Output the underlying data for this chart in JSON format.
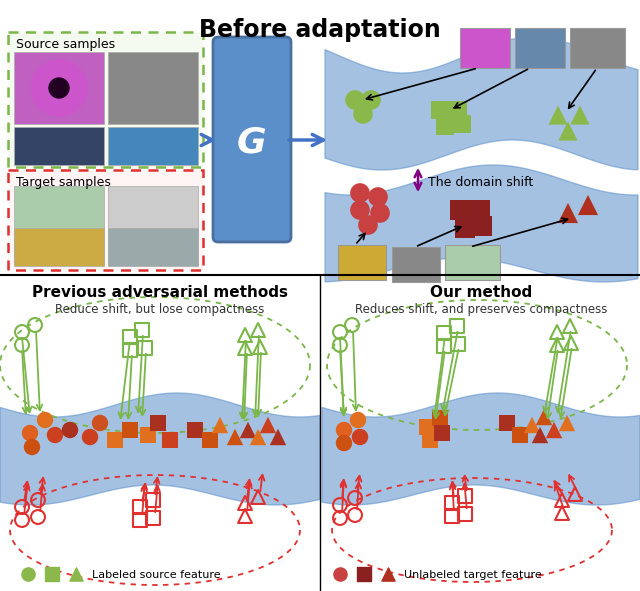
{
  "title_top": "Before adaptation",
  "title_bottom_left": "Previous adversarial methods",
  "subtitle_bottom_left": "Reduce shift, but lose compactness",
  "title_bottom_right": "Our method",
  "subtitle_bottom_right": "Reduces shift, and preserves compactness",
  "source_label": "Source samples",
  "target_label": "Target samples",
  "g_label": "G",
  "domain_shift_label": "The domain shift",
  "legend_source": "Labeled source feature",
  "legend_target": "Unlabeled target feature",
  "bg_color": "#ffffff",
  "blue_band": "#5b8fc9",
  "green_dashed": "#7ab648",
  "red_dashed": "#e03030",
  "green_circle": "#8ab84a",
  "green_square": "#8ab84a",
  "green_triangle": "#8ab84a",
  "red_circle": "#c94040",
  "red_square": "#8b2020",
  "red_triangle": "#b03020",
  "orange_bright": "#f5a020",
  "orange_dark": "#c86010",
  "darkred": "#8b2020"
}
